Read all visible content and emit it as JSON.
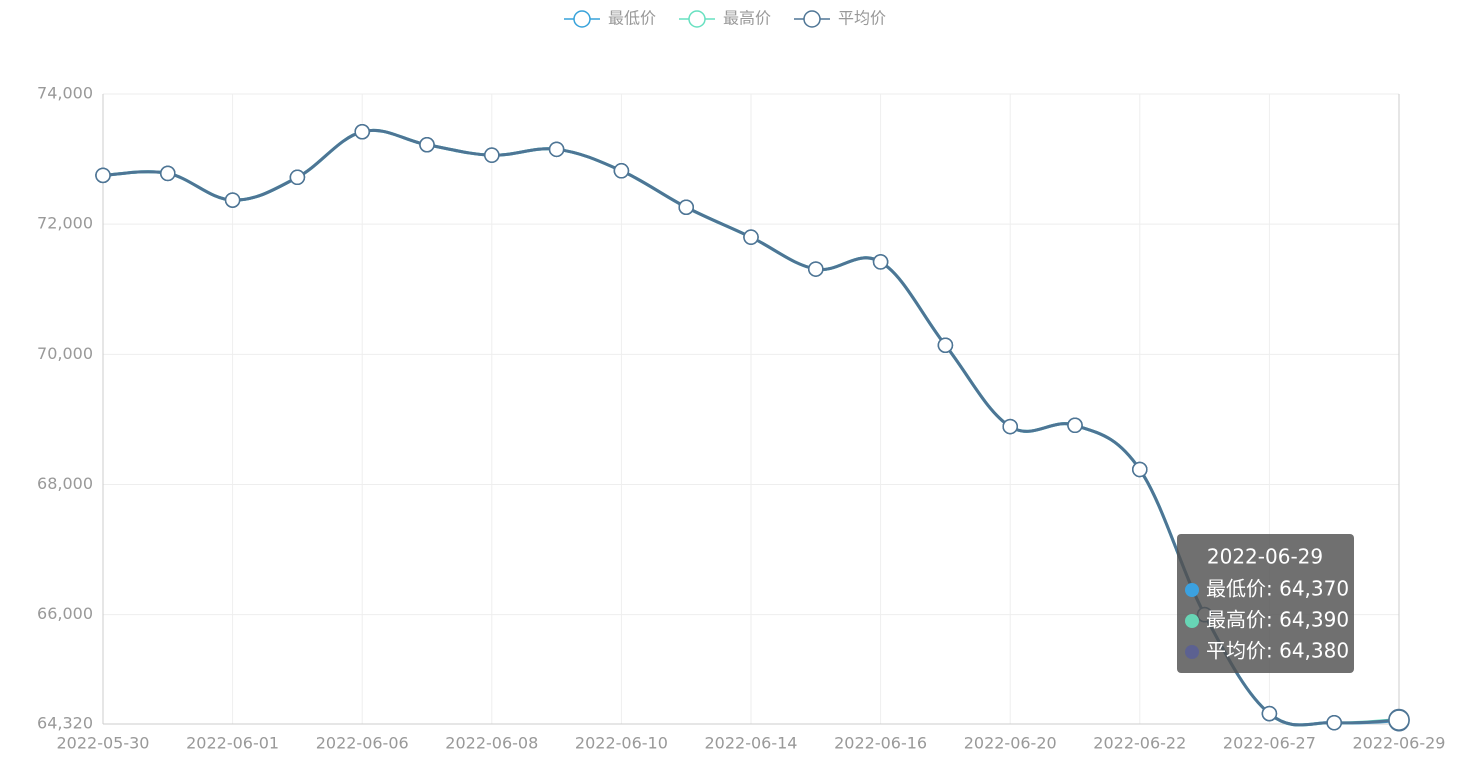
{
  "chart_data": {
    "type": "line",
    "categories": [
      "2022-05-30",
      null,
      "2022-06-01",
      null,
      "2022-06-06",
      null,
      "2022-06-08",
      null,
      "2022-06-10",
      null,
      "2022-06-14",
      null,
      "2022-06-16",
      null,
      "2022-06-20",
      null,
      "2022-06-22",
      null,
      "2022-06-27",
      null,
      "2022-06-29"
    ],
    "series": [
      {
        "name": "最低价",
        "color": "#37a2da",
        "values": [
          72750,
          72780,
          72370,
          72720,
          73420,
          73220,
          73060,
          73150,
          72820,
          72260,
          71800,
          71310,
          71420,
          70140,
          68890,
          68910,
          68230,
          66000,
          64480,
          64340,
          64370
        ]
      },
      {
        "name": "最高价",
        "color": "#67e0c0",
        "values": [
          72750,
          72780,
          72370,
          72720,
          73420,
          73220,
          73060,
          73150,
          72820,
          72260,
          71800,
          71310,
          71420,
          70140,
          68890,
          68910,
          68230,
          66000,
          64480,
          64340,
          64390
        ]
      },
      {
        "name": "平均价",
        "color": "#4e7595",
        "values": [
          72750,
          72780,
          72370,
          72720,
          73420,
          73220,
          73060,
          73150,
          72820,
          72260,
          71800,
          71310,
          71420,
          70140,
          68890,
          68910,
          68230,
          66000,
          64480,
          64340,
          64380
        ]
      }
    ],
    "ylim": [
      64320,
      74000
    ],
    "yticks": [
      {
        "value": 64320,
        "label": "64,320"
      },
      {
        "value": 66000,
        "label": "66,000"
      },
      {
        "value": 68000,
        "label": "68,000"
      },
      {
        "value": 70000,
        "label": "70,000"
      },
      {
        "value": 72000,
        "label": "72,000"
      },
      {
        "value": 74000,
        "label": "74,000"
      }
    ],
    "grid": true,
    "legend": "top",
    "tooltip": {
      "index": 20,
      "title": "2022-06-29",
      "dot_colors": [
        "#3ba1e0",
        "#67d5b5",
        "#5c6191"
      ],
      "lines": [
        "最低价: 64,370",
        "最高价: 64,390",
        "平均价: 64,380"
      ]
    }
  }
}
